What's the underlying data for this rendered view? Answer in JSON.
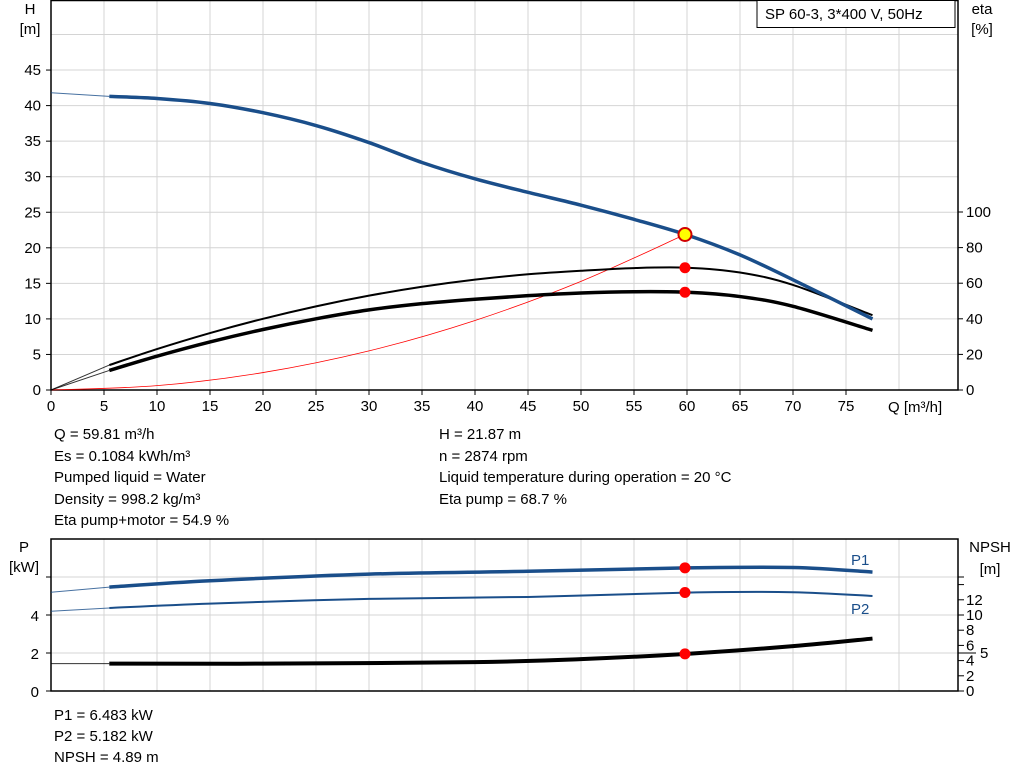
{
  "title": "SP 60-3, 3*400 V, 50Hz",
  "colors": {
    "head": "#1a4e8a",
    "power": "#1a4e8a",
    "eta": "#000000",
    "npsh": "#000000",
    "system": "#ff0000",
    "duty_point": "#ff0000",
    "duty_point_head": "#ffff00"
  },
  "chart_data": [
    {
      "type": "line",
      "xlabel": "Q [m³/h]",
      "ylabel_left": [
        "H",
        "[m]"
      ],
      "ylabel_right": [
        "eta",
        "[%]"
      ],
      "xlim": [
        0,
        80
      ],
      "ylim_left": [
        0,
        50
      ],
      "ylim_right": [
        0,
        100
      ],
      "x_ticks": [
        0,
        5,
        10,
        15,
        20,
        25,
        30,
        35,
        40,
        45,
        50,
        55,
        60,
        65,
        70,
        75
      ],
      "y_ticks_left": [
        0,
        5,
        10,
        15,
        20,
        25,
        30,
        35,
        40,
        45
      ],
      "y_ticks_right": [
        0,
        20,
        40,
        60,
        80,
        100
      ],
      "grid": true,
      "series": [
        {
          "key": "H",
          "axis": "left",
          "x": [
            5.5,
            10,
            15,
            20,
            25,
            30,
            35,
            40,
            45,
            50,
            55,
            60,
            65,
            70,
            77.5
          ],
          "y": [
            41.3,
            41,
            40.3,
            39,
            37.2,
            34.8,
            32,
            29.7,
            27.8,
            26,
            24,
            21.8,
            19,
            15.5,
            10
          ],
          "extrapolated_from": [
            0,
            41.8
          ]
        },
        {
          "key": "eta_pump",
          "axis": "right",
          "x": [
            5.5,
            10,
            15,
            20,
            25,
            30,
            35,
            40,
            45,
            50,
            55,
            60,
            65,
            70,
            77.5
          ],
          "y": [
            14,
            23,
            32,
            40,
            47,
            53,
            58,
            62,
            65,
            67,
            68.5,
            68.7,
            66,
            59,
            42
          ],
          "extrapolated_from": [
            0,
            0
          ]
        },
        {
          "key": "eta_pump_motor",
          "axis": "right",
          "x": [
            5.5,
            10,
            15,
            20,
            25,
            30,
            35,
            40,
            45,
            50,
            55,
            60,
            65,
            70,
            77.5
          ],
          "y": [
            11,
            19,
            27,
            34,
            40,
            45,
            48.5,
            51,
            53,
            54.5,
            55.2,
            54.9,
            52.5,
            47,
            33.5
          ],
          "extrapolated_from": [
            0,
            0
          ]
        },
        {
          "key": "system_curve",
          "axis": "left",
          "x": [
            0,
            10,
            20,
            30,
            40,
            50,
            59.81
          ],
          "y": [
            0,
            0.61,
            2.45,
            5.5,
            9.78,
            15.28,
            21.87
          ]
        }
      ],
      "duty_point": {
        "Q": 59.81,
        "H": 21.87,
        "eta_pump": 68.7,
        "eta_pump_motor": 54.9
      }
    },
    {
      "type": "line",
      "ylabel_left": [
        "P",
        "[kW]"
      ],
      "ylabel_right": [
        "NPSH",
        "[m]"
      ],
      "xlim": [
        0,
        80
      ],
      "ylim_left": [
        0,
        8
      ],
      "ylim_right": [
        0,
        20
      ],
      "y_ticks_left": [
        0,
        2,
        4
      ],
      "y_ticks_right": [
        0,
        2,
        4,
        5,
        6,
        8,
        10,
        12
      ],
      "grid": true,
      "series": [
        {
          "name": "P1",
          "axis": "left",
          "x": [
            5.5,
            15,
            30,
            45,
            60,
            70,
            77.5
          ],
          "y": [
            5.47,
            5.8,
            6.15,
            6.3,
            6.48,
            6.5,
            6.26
          ],
          "extrapolated_from": [
            0,
            5.2
          ]
        },
        {
          "name": "P2",
          "axis": "left",
          "x": [
            5.5,
            15,
            30,
            45,
            60,
            70,
            77.5
          ],
          "y": [
            4.37,
            4.6,
            4.85,
            4.95,
            5.18,
            5.2,
            5.0
          ],
          "extrapolated_from": [
            0,
            4.2
          ]
        },
        {
          "key": "NPSH",
          "axis": "right",
          "x": [
            5.5,
            20,
            40,
            50,
            60,
            70,
            77.5
          ],
          "y": [
            3.6,
            3.6,
            3.8,
            4.2,
            4.89,
            5.9,
            6.9
          ],
          "extrapolated_from": [
            0,
            3.6
          ]
        }
      ]
    }
  ],
  "info_top": {
    "left": [
      "Q = 59.81 m³/h",
      "Es = 0.1084 kWh/m³",
      "Pumped liquid = Water",
      "Density = 998.2 kg/m³",
      "Eta pump+motor = 54.9 %"
    ],
    "right": [
      "H = 21.87 m",
      "n = 2874 rpm",
      "Liquid temperature during operation = 20 °C",
      "Eta pump = 68.7 %"
    ]
  },
  "info_bottom": [
    "P1 = 6.483 kW",
    "P2 = 5.182 kW",
    "NPSH = 4.89 m"
  ]
}
